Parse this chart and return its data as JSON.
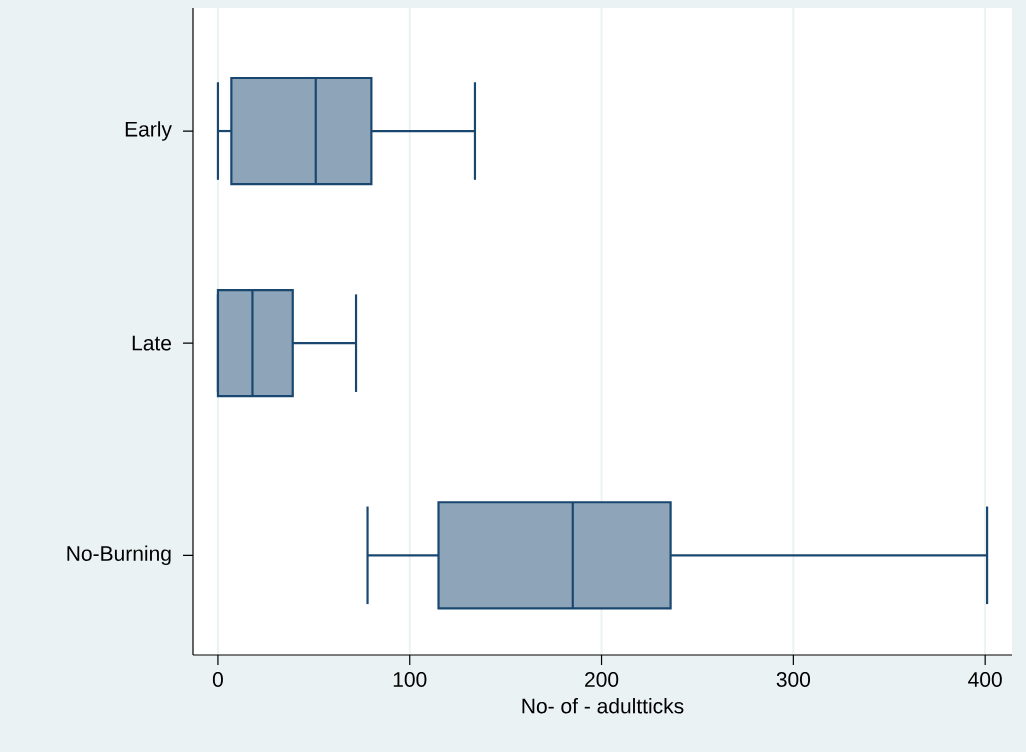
{
  "chart_data": {
    "type": "box",
    "orientation": "horizontal",
    "xlabel": "No- of - adultticks",
    "categories": [
      "Early",
      "Late",
      "No-Burning"
    ],
    "boxes": [
      {
        "low": 0,
        "q1": 7,
        "median": 51,
        "q3": 80,
        "high": 134
      },
      {
        "low": 0,
        "q1": 0,
        "median": 18,
        "q3": 39,
        "high": 72
      },
      {
        "low": 78,
        "q1": 115,
        "median": 185,
        "q3": 236,
        "high": 401
      }
    ],
    "color": "#8ea4b9",
    "xlim": [
      -13,
      414
    ],
    "xticks": [
      0,
      100,
      200,
      300,
      400
    ],
    "grid": "x"
  }
}
